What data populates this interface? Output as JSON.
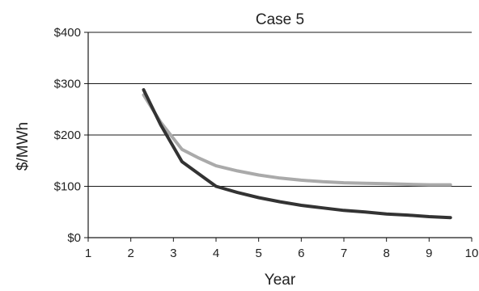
{
  "chart_data": {
    "type": "line",
    "title": "Case 5",
    "xlabel": "Year",
    "ylabel": "$/MWh",
    "xlim": [
      1,
      10
    ],
    "ylim": [
      0,
      400
    ],
    "x_ticks": [
      "1",
      "2",
      "3",
      "4",
      "5",
      "6",
      "7",
      "8",
      "9",
      "10"
    ],
    "y_ticks": [
      "$0",
      "$100",
      "$200",
      "$300",
      "$400"
    ],
    "grid": "horizontal",
    "legend": "none",
    "series": [
      {
        "color": "#aaaaaa",
        "points": [
          [
            2.3,
            278
          ],
          [
            2.7,
            225
          ],
          [
            3.2,
            172
          ],
          [
            3.6,
            155
          ],
          [
            4.0,
            140
          ],
          [
            4.5,
            130
          ],
          [
            5.0,
            122
          ],
          [
            5.5,
            116
          ],
          [
            6.0,
            112
          ],
          [
            6.5,
            109
          ],
          [
            7.0,
            107
          ],
          [
            7.5,
            106
          ],
          [
            8.0,
            105
          ],
          [
            8.5,
            104
          ],
          [
            9.0,
            103
          ],
          [
            9.5,
            103
          ]
        ]
      },
      {
        "color": "#333333",
        "points": [
          [
            2.3,
            288
          ],
          [
            2.7,
            220
          ],
          [
            3.2,
            148
          ],
          [
            3.6,
            124
          ],
          [
            4.0,
            100
          ],
          [
            4.5,
            88
          ],
          [
            5.0,
            78
          ],
          [
            5.5,
            70
          ],
          [
            6.0,
            63
          ],
          [
            6.5,
            58
          ],
          [
            7.0,
            53
          ],
          [
            7.5,
            50
          ],
          [
            8.0,
            46
          ],
          [
            8.5,
            44
          ],
          [
            9.0,
            41
          ],
          [
            9.5,
            39
          ]
        ]
      }
    ]
  }
}
